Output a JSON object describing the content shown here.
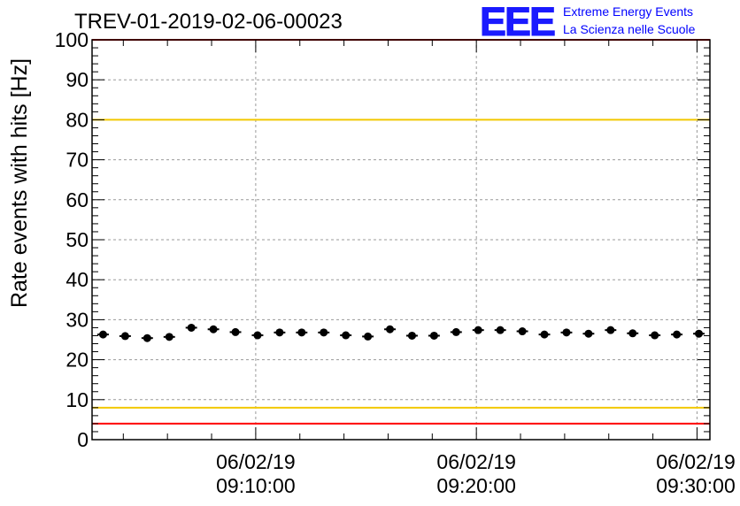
{
  "header": {
    "run_id": "TREV-01-2019-02-06-00023",
    "logo_letters": "EEE",
    "logo_line1": "Extreme Energy Events",
    "logo_line2": "La Scienza nelle Scuole"
  },
  "chart_data": {
    "type": "scatter",
    "title": "TREV-01-2019-02-06-00023",
    "xlabel": "",
    "ylabel": "Rate events with hits [Hz]",
    "ylim": [
      0,
      100
    ],
    "xlim": [
      "06/02/19 09:02:35",
      "06/02/19 09:30:35"
    ],
    "yticks": [
      0,
      10,
      20,
      30,
      40,
      50,
      60,
      70,
      80,
      90,
      100
    ],
    "xticks": [
      {
        "date": "06/02/19",
        "time": "09:10:00"
      },
      {
        "date": "06/02/19",
        "time": "09:20:00"
      },
      {
        "date": "06/02/19",
        "time": "09:30:00"
      }
    ],
    "grid": true,
    "reference_lines": [
      {
        "y": 80,
        "color": "#f2c800"
      },
      {
        "y": 8,
        "color": "#f2c800"
      },
      {
        "y": 4,
        "color": "#ff0000"
      },
      {
        "y": 100,
        "color": "#ff0000"
      }
    ],
    "series": [
      {
        "color": "#000000",
        "x": [
          "09:03:05",
          "09:04:05",
          "09:05:05",
          "09:06:05",
          "09:07:05",
          "09:08:05",
          "09:09:05",
          "09:10:05",
          "09:11:05",
          "09:12:05",
          "09:13:05",
          "09:14:05",
          "09:15:05",
          "09:16:05",
          "09:17:05",
          "09:18:05",
          "09:19:05",
          "09:20:05",
          "09:21:05",
          "09:22:05",
          "09:23:05",
          "09:24:05",
          "09:25:05",
          "09:26:05",
          "09:27:05",
          "09:28:05",
          "09:29:05",
          "09:30:05"
        ],
        "y": [
          26.3,
          25.9,
          25.4,
          25.7,
          28.0,
          27.6,
          26.9,
          26.1,
          26.8,
          26.8,
          26.8,
          26.1,
          25.8,
          27.6,
          26.0,
          26.0,
          26.9,
          27.4,
          27.4,
          27.1,
          26.3,
          26.8,
          26.5,
          27.4,
          26.6,
          26.1,
          26.3,
          26.5
        ]
      }
    ]
  }
}
